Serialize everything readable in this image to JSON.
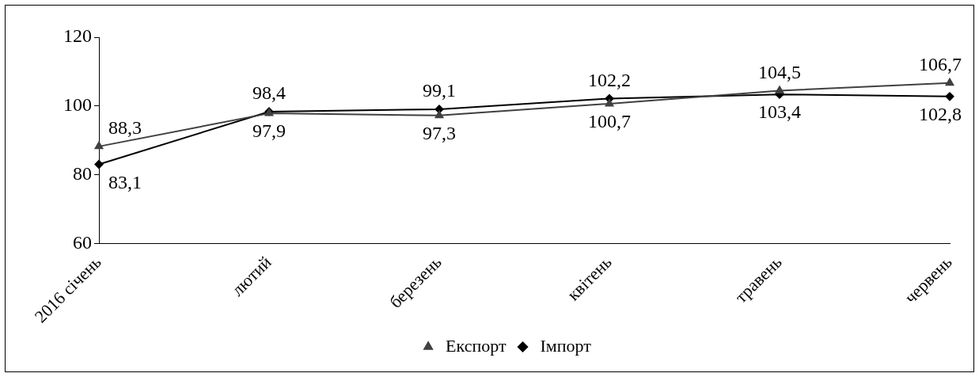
{
  "chart_data": {
    "type": "line",
    "categories": [
      "2016 січень",
      "лютий",
      "березень",
      "квітень",
      "травень",
      "червень"
    ],
    "series": [
      {
        "name": "Експорт",
        "color": "#404040",
        "marker": "triangle",
        "values": [
          88.3,
          97.9,
          97.3,
          100.7,
          104.5,
          106.7
        ],
        "value_labels": [
          "88,3",
          "97,9",
          "97,3",
          "100,7",
          "104,5",
          "106,7"
        ]
      },
      {
        "name": "Імпорт",
        "color": "#000000",
        "marker": "diamond",
        "values": [
          83.1,
          98.4,
          99.1,
          102.2,
          103.4,
          102.8
        ],
        "value_labels": [
          "83,1",
          "98,4",
          "99,1",
          "102,2",
          "103,4",
          "102,8"
        ]
      }
    ],
    "ylim": [
      60,
      120
    ],
    "yticks": [
      60,
      80,
      100,
      120
    ],
    "grid": false,
    "legend": "bottom",
    "line_style": "solid"
  }
}
